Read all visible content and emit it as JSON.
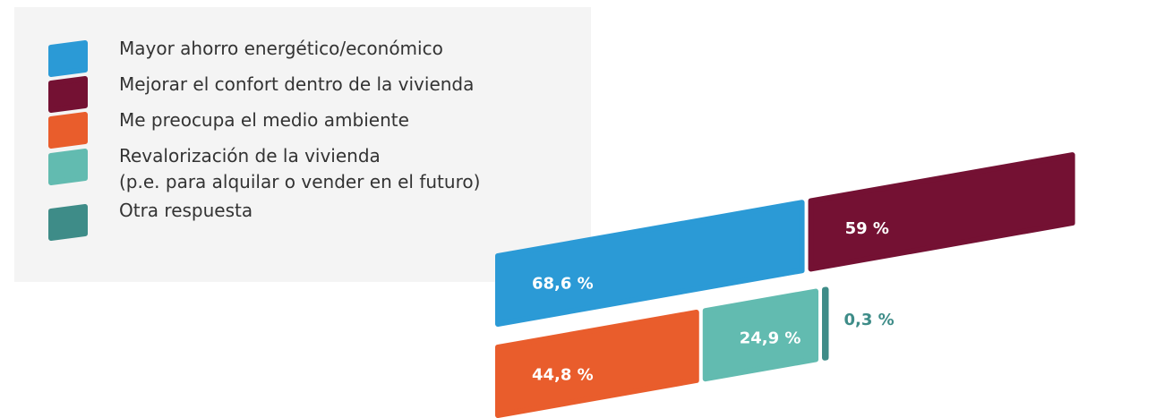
{
  "chart_data": {
    "type": "bar",
    "categories": [
      "Mayor ahorro energético/económico",
      "Mejorar el confort dentro de la vivienda",
      "Me preocupa el medio ambiente",
      "Revalorización de la vivienda\n(p.e. para alquilar o vender en el futuro)",
      "Otra respuesta"
    ],
    "values": [
      68.6,
      59,
      44.8,
      24.9,
      0.3
    ],
    "value_labels": [
      "68,6 %",
      "59 %",
      "44,8 %",
      "24,9 %",
      "0,3 %"
    ],
    "colors": [
      "#2b9ad6",
      "#741133",
      "#e95d2c",
      "#62bbb0",
      "#3e8c88"
    ]
  }
}
